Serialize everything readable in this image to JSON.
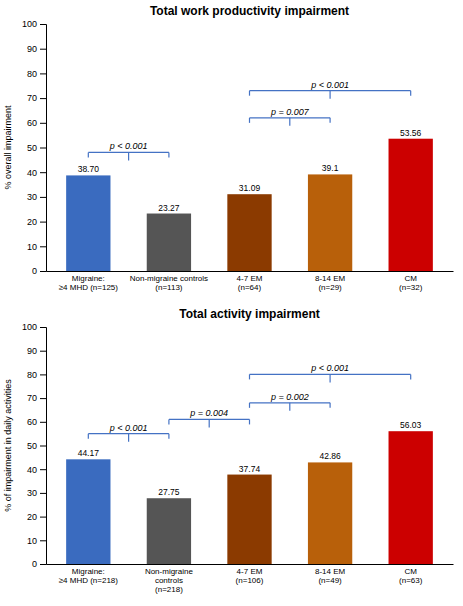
{
  "chart_data": [
    {
      "type": "bar",
      "title": "Total work productivity impairment",
      "ylabel": "% overall impairment",
      "categories": [
        "Migraine:\n≥4 MHD (n=125)",
        "Non-migraine controls\n(n=113)",
        "4-7 EM\n(n=64)",
        "8-14 EM\n(n=29)",
        "CM\n(n=32)"
      ],
      "values": [
        38.7,
        23.27,
        31.09,
        39.1,
        53.56
      ],
      "value_labels": [
        "38.70",
        "23.27",
        "31.09",
        "39.1",
        "53.56"
      ],
      "data_labels": true,
      "colors": [
        "#3a6bbf",
        "#555555",
        "#8B3A00",
        "#B8600A",
        "#cc0000"
      ],
      "ylim": [
        0,
        100
      ],
      "yticks": [
        0,
        10,
        20,
        30,
        40,
        50,
        60,
        70,
        80,
        90,
        100
      ],
      "grid": false,
      "annotations": [
        {
          "text": "p < 0.001",
          "x1": 0,
          "x2": 1,
          "y": 48,
          "color": "#4472c4"
        },
        {
          "text": "p = 0.007",
          "x1": 2,
          "x2": 3,
          "y": 62,
          "color": "#4472c4"
        },
        {
          "text": "p < 0.001",
          "x1": 2,
          "x2": 4,
          "y": 73,
          "color": "#4472c4"
        }
      ]
    },
    {
      "type": "bar",
      "title": "Total activity impairment",
      "ylabel": "% of impairment in daily activities",
      "categories": [
        "Migraine:\n≥4 MHD (n=218)",
        "Non-migraine\ncontrols\n(n=218)",
        "4-7 EM\n(n=106)",
        "8-14 EM\n(n=49)",
        "CM\n(n=63)"
      ],
      "values": [
        44.17,
        27.75,
        37.74,
        42.86,
        56.03
      ],
      "value_labels": [
        "44.17",
        "27.75",
        "37.74",
        "42.86",
        "56.03"
      ],
      "data_labels": true,
      "colors": [
        "#3a6bbf",
        "#555555",
        "#8B3A00",
        "#B8600A",
        "#cc0000"
      ],
      "ylim": [
        0,
        100
      ],
      "yticks": [
        0,
        10,
        20,
        30,
        40,
        50,
        60,
        70,
        80,
        90,
        100
      ],
      "grid": false,
      "annotations": [
        {
          "text": "p < 0.001",
          "x1": 0,
          "x2": 1,
          "y": 55,
          "color": "#4472c4"
        },
        {
          "text": "p = 0.004",
          "x1": 1,
          "x2": 2,
          "y": 61,
          "color": "#4472c4"
        },
        {
          "text": "p = 0.002",
          "x1": 2,
          "x2": 3,
          "y": 68,
          "color": "#4472c4"
        },
        {
          "text": "p < 0.001",
          "x1": 2,
          "x2": 4,
          "y": 80,
          "color": "#4472c4"
        }
      ]
    }
  ]
}
